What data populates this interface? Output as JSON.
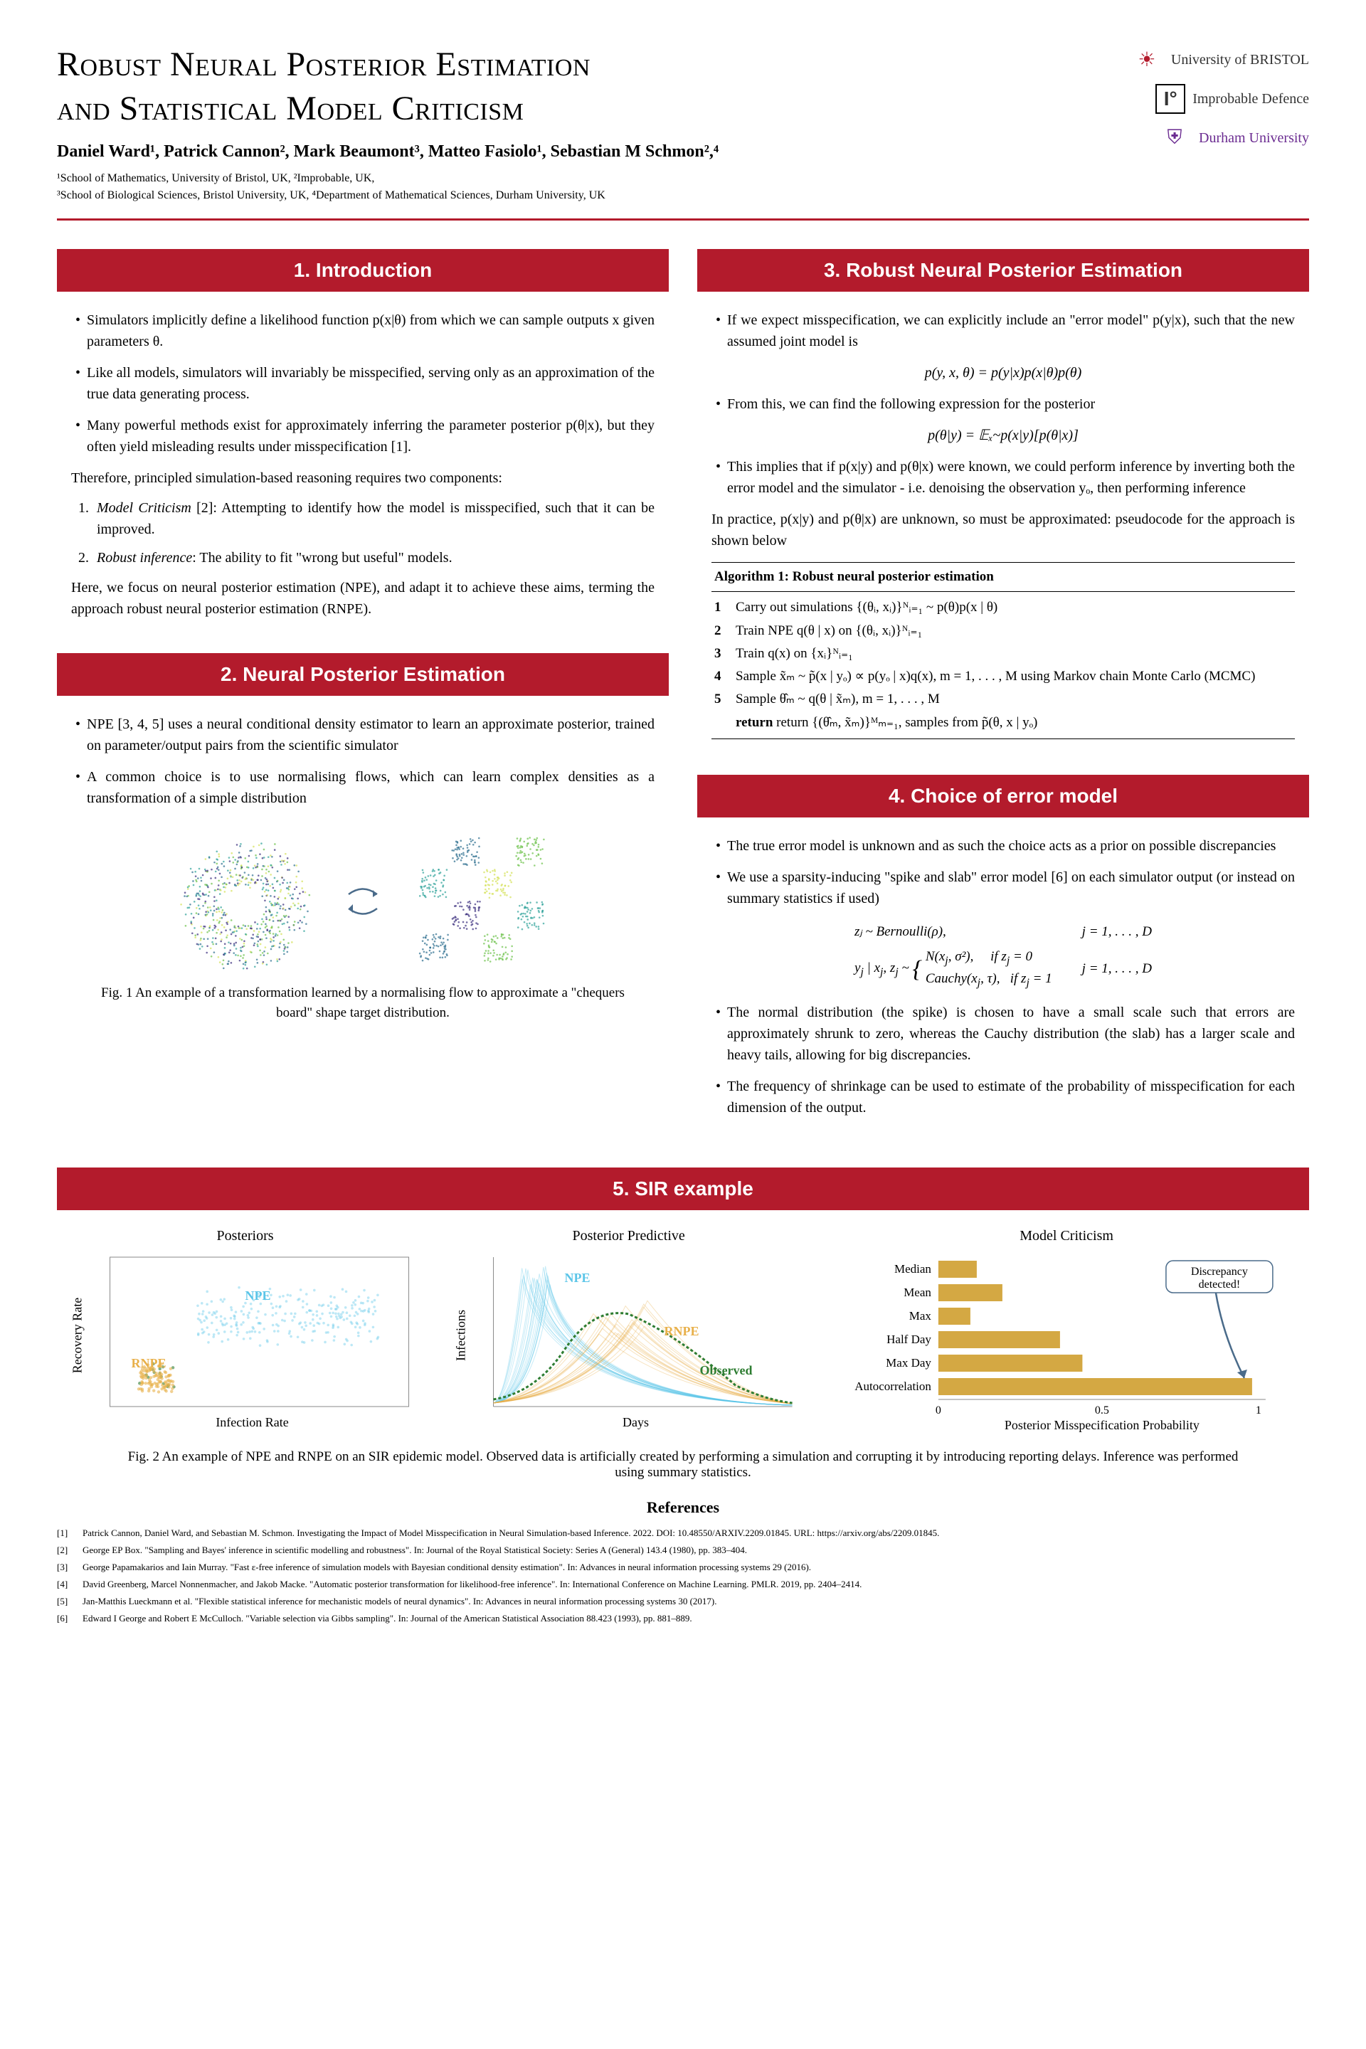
{
  "title_line1": "Robust Neural Posterior Estimation",
  "title_line2": "and Statistical Model Criticism",
  "authors_html": "Daniel Ward¹, Patrick Cannon², Mark Beaumont³, Matteo Fasiolo¹, Sebastian M Schmon²,⁴",
  "affil_line1": "¹School of Mathematics, University of Bristol, UK, ²Improbable, UK,",
  "affil_line2": "³School of Biological Sciences, Bristol University, UK, ⁴Department of Mathematical Sciences, Durham University, UK",
  "logos": {
    "bristol": "University of BRISTOL",
    "improbable": "Improbable Defence",
    "durham": "Durham University"
  },
  "colors": {
    "accent": "#b31b2c",
    "bristol": "#b31b2c",
    "durham": "#6b2c91"
  },
  "sec1": {
    "title": "1. Introduction",
    "b1": "Simulators implicitly define a likelihood function p(x|θ) from which we can sample outputs x given parameters θ.",
    "b2": "Like all models, simulators will invariably be misspecified, serving only as an approximation of the true data generating process.",
    "b3": "Many powerful methods exist for approximately inferring the parameter posterior p(θ|x), but they often yield misleading results under misspecification [1].",
    "p1": "Therefore, principled simulation-based reasoning requires two components:",
    "o1": "Model Criticism [2]: Attempting to identify how the model is misspecified, such that it can be improved.",
    "o2": "Robust inference: The ability to fit \"wrong but useful\" models.",
    "p2": "Here, we focus on neural posterior estimation (NPE), and adapt it to achieve these aims, terming the approach robust neural posterior estimation (RNPE)."
  },
  "sec2": {
    "title": "2. Neural Posterior Estimation",
    "b1": "NPE [3, 4, 5] uses a neural conditional density estimator to learn an approximate posterior, trained on parameter/output pairs from the scientific simulator",
    "b2": "A common choice is to use normalising flows, which can learn complex densities as a transformation of a simple distribution",
    "fig_caption": "Fig. 1 An example of a transformation learned by a normalising flow to approximate a \"chequers board\" shape target distribution."
  },
  "sec3": {
    "title": "3. Robust Neural Posterior Estimation",
    "b1": "If we expect misspecification, we can explicitly include an \"error model\" p(y|x), such that the new assumed joint model is",
    "eq1": "p(y, x, θ) = p(y|x)p(x|θ)p(θ)",
    "b2": "From this, we can find the following expression for the posterior",
    "eq2": "p(θ|y) = 𝔼ₓ~p(x|y)[p(θ|x)]",
    "b3": "This implies that if p(x|y) and p(θ|x) were known, we could perform inference by inverting both the error model and the simulator - i.e. denoising the observation yₒ, then performing inference",
    "p1": "In practice, p(x|y) and p(θ|x) are unknown, so must be approximated: pseudocode for the approach is shown below",
    "algo": {
      "title": "Algorithm 1: Robust neural posterior estimation",
      "l1": "Carry out simulations {(θᵢ, xᵢ)}ᴺᵢ₌₁ ~ p(θ)p(x | θ)",
      "l2": "Train NPE q(θ | x) on {(θᵢ, xᵢ)}ᴺᵢ₌₁",
      "l3": "Train q(x) on {xᵢ}ᴺᵢ₌₁",
      "l4": "Sample x̃ₘ ~ p̃(x | yₒ) ∝ p(yₒ | x)q(x),  m = 1, . . . , M using Markov chain Monte Carlo (MCMC)",
      "l5": "Sample θ̂ₘ ~ q(θ | x̃ₘ),  m = 1, . . . , M",
      "ret": "return {(θ̂ₘ, x̃ₘ)}ᴹₘ₌₁, samples from p̃(θ, x | yₒ)"
    }
  },
  "sec4": {
    "title": "4. Choice of error model",
    "b1": "The true error model is unknown and as such the choice acts as a prior on possible discrepancies",
    "b2": "We use a sparsity-inducing \"spike and slab\" error model [6] on each simulator output (or instead on summary statistics if used)",
    "eq_r1c1": "zⱼ ~ Bernoulli(ρ),",
    "eq_r1c2": "j = 1, . . . , D",
    "eq_r2c1": "yⱼ | xⱼ, zⱼ ~ { N(xⱼ, σ²), if zⱼ = 0 ; Cauchy(xⱼ, τ), if zⱼ = 1 }",
    "eq_r2c2": "j = 1, . . . , D",
    "b3": "The normal distribution (the spike) is chosen to have a small scale such that errors are approximately shrunk to zero, whereas the Cauchy distribution (the slab) has a larger scale and heavy tails, allowing for big discrepancies.",
    "b4": "The frequency of shrinkage can be used to estimate of the probability of misspecification for each dimension of the output."
  },
  "sec5": {
    "title": "5. SIR example",
    "panel1": "Posteriors",
    "panel2": "Posterior Predictive",
    "panel3": "Model Criticism",
    "p1_xlabel": "Infection Rate",
    "p1_ylabel": "Recovery Rate",
    "p1_npe": "NPE",
    "p1_rnpe": "RNPE",
    "p2_xlabel": "Days",
    "p2_ylabel": "Infections",
    "p2_npe": "NPE",
    "p2_rnpe": "RNPE",
    "p2_obs": "Observed",
    "p3_xlabel": "Posterior Misspecification Probability",
    "p3_callout": "Discrepancy detected!",
    "p3_cats": [
      "Median",
      "Mean",
      "Max",
      "Half Day",
      "Max Day",
      "Autocorrelation"
    ],
    "p3_vals": [
      0.12,
      0.2,
      0.1,
      0.38,
      0.45,
      0.98
    ],
    "p3_xticks": [
      "0",
      "0.5",
      "1"
    ],
    "bar_color": "#d4a843",
    "npe_color": "#5bc5e8",
    "rnpe_color": "#e8b04a",
    "obs_color": "#2e7d32",
    "fig_caption": "Fig. 2 An example of NPE and RNPE on an SIR epidemic model. Observed data is artificially created by performing a simulation and corrupting it by introducing reporting delays. Inference was performed using summary statistics."
  },
  "refs_title": "References",
  "refs": [
    "Patrick Cannon, Daniel Ward, and Sebastian M. Schmon. Investigating the Impact of Model Misspecification in Neural Simulation-based Inference. 2022. DOI: 10.48550/ARXIV.2209.01845. URL: https://arxiv.org/abs/2209.01845.",
    "George EP Box. \"Sampling and Bayes' inference in scientific modelling and robustness\". In: Journal of the Royal Statistical Society: Series A (General) 143.4 (1980), pp. 383–404.",
    "George Papamakarios and Iain Murray. \"Fast ε-free inference of simulation models with Bayesian conditional density estimation\". In: Advances in neural information processing systems 29 (2016).",
    "David Greenberg, Marcel Nonnenmacher, and Jakob Macke. \"Automatic posterior transformation for likelihood-free inference\". In: International Conference on Machine Learning. PMLR. 2019, pp. 2404–2414.",
    "Jan-Matthis Lueckmann et al. \"Flexible statistical inference for mechanistic models of neural dynamics\". In: Advances in neural information processing systems 30 (2017).",
    "Edward I George and Robert E McCulloch. \"Variable selection via Gibbs sampling\". In: Journal of the American Statistical Association 88.423 (1993), pp. 881–889."
  ]
}
